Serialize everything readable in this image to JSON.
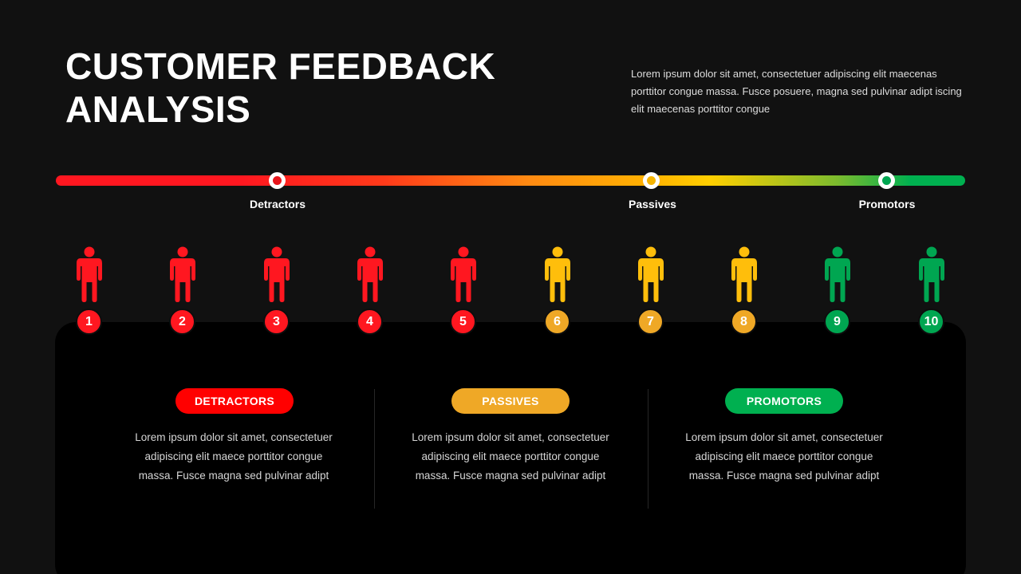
{
  "title": {
    "line1": "CUSTOMER FEEDBACK",
    "line2": "ANALYSIS"
  },
  "intro": "Lorem ipsum dolor sit amet, consectetuer adipiscing elit maecenas porttitor congue massa. Fusce posuere, magna sed pulvinar adipt iscing elit maecenas porttitor congue",
  "colors": {
    "red": "#ff1720",
    "yellow": "#f5b400",
    "green": "#00a651",
    "background": "#111111",
    "panel": "#000000"
  },
  "scale": {
    "markers": [
      {
        "label": "Detractors",
        "color": "#e8151b"
      },
      {
        "label": "Passives",
        "color": "#f5b400"
      },
      {
        "label": "Promotors",
        "color": "#00a651"
      }
    ]
  },
  "people": [
    {
      "number": "1",
      "group": "detractors",
      "color": "#ff1720",
      "badge": "#ff1720"
    },
    {
      "number": "2",
      "group": "detractors",
      "color": "#ff1720",
      "badge": "#ff1720"
    },
    {
      "number": "3",
      "group": "detractors",
      "color": "#ff1720",
      "badge": "#ff1720"
    },
    {
      "number": "4",
      "group": "detractors",
      "color": "#ff1720",
      "badge": "#ff1720"
    },
    {
      "number": "5",
      "group": "detractors",
      "color": "#ff1720",
      "badge": "#ff1720"
    },
    {
      "number": "6",
      "group": "passives",
      "color": "#ffbe0b",
      "badge": "#efa826"
    },
    {
      "number": "7",
      "group": "passives",
      "color": "#ffbe0b",
      "badge": "#efa826"
    },
    {
      "number": "8",
      "group": "passives",
      "color": "#ffbe0b",
      "badge": "#efa826"
    },
    {
      "number": "9",
      "group": "promotors",
      "color": "#00a651",
      "badge": "#00a651"
    },
    {
      "number": "10",
      "group": "promotors",
      "color": "#00a651",
      "badge": "#00a651"
    }
  ],
  "categories": [
    {
      "label": "DETRACTORS",
      "color": "#ff0000",
      "text": "Lorem ipsum dolor sit amet, consectetuer adipiscing elit maece porttitor congue massa. Fusce magna sed pulvinar adipt"
    },
    {
      "label": "PASSIVES",
      "color": "#efa826",
      "text": "Lorem ipsum dolor sit amet, consectetuer adipiscing elit maece porttitor congue massa. Fusce magna sed pulvinar adipt"
    },
    {
      "label": "PROMOTORS",
      "color": "#00b050",
      "text": "Lorem ipsum dolor sit amet, consectetuer adipiscing elit maece porttitor congue massa. Fusce magna sed pulvinar adipt"
    }
  ]
}
